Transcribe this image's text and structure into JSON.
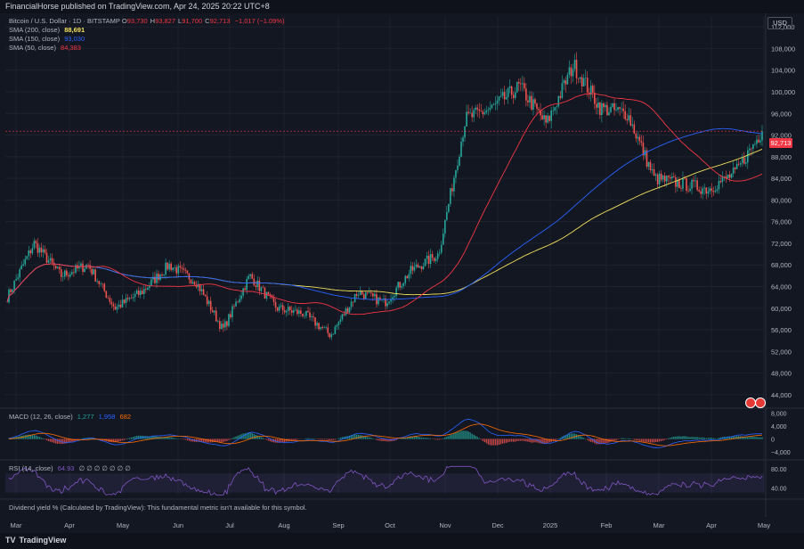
{
  "header": {
    "published": "FinancialHorse published on TradingView.com, Apr 24, 2025 20:22 UTC+8"
  },
  "legend": {
    "symbol": "Bitcoin / U.S. Dollar · 1D · BITSTAMP",
    "ohlc": [
      {
        "k": "O",
        "v": "93,730"
      },
      {
        "k": "H",
        "v": "93,827"
      },
      {
        "k": "L",
        "v": "91,700"
      },
      {
        "k": "C",
        "v": "92,713"
      }
    ],
    "change": "−1,017 (−1.09%)",
    "sma200_label": "SMA (200, close)",
    "sma200_value": "88,691",
    "sma150_label": "SMA (150, close)",
    "sma150_value": "93,030",
    "sma50_label": "SMA (50, close)",
    "sma50_value": "84,383"
  },
  "currency_button": "USD",
  "last_price_tag": "92,713",
  "macd": {
    "label": "MACD (12, 26, close)",
    "v1": "1,277",
    "v2": "1,958",
    "v3": "682"
  },
  "rsi": {
    "label": "RSI (14, close)",
    "value": "64.93",
    "extra": "∅ ∅ ∅ ∅ ∅ ∅ ∅"
  },
  "footer_note": "Dividend yield % (Calculated by TradingView): This fundamental metric isn't available for this symbol.",
  "brand": "TradingView",
  "colors": {
    "up": "#26a69a",
    "down": "#ef5350",
    "sma200": "#f2e15c",
    "sma150": "#2962ff",
    "sma50": "#f23645",
    "rsi": "#7e57c2",
    "macd": "#2962ff",
    "signal": "#ff6d00"
  },
  "chart_data": [
    {
      "type": "candlestick",
      "title": "Bitcoin / U.S. Dollar · 1D · BITSTAMP",
      "x_ticks": [
        "Mar",
        "Apr",
        "May",
        "Jun",
        "Jul",
        "Aug",
        "Sep",
        "Oct",
        "Nov",
        "Dec",
        "2025",
        "Feb",
        "Mar",
        "Apr",
        "May"
      ],
      "y_ticks": [
        44000,
        48000,
        52000,
        56000,
        60000,
        64000,
        68000,
        72000,
        76000,
        80000,
        84000,
        88000,
        92000,
        96000,
        100000,
        104000,
        108000,
        112000
      ],
      "ylim": [
        42000,
        114000
      ],
      "close_anchors_approx": [
        [
          "Mar",
          62000
        ],
        [
          "Mar",
          72000
        ],
        [
          "Apr",
          66000
        ],
        [
          "Apr",
          68000
        ],
        [
          "May",
          60000
        ],
        [
          "May",
          63000
        ],
        [
          "Jun",
          68000
        ],
        [
          "Jun",
          65000
        ],
        [
          "Jul",
          56000
        ],
        [
          "Jul",
          66000
        ],
        [
          "Aug",
          60000
        ],
        [
          "Aug",
          59000
        ],
        [
          "Sep",
          55000
        ],
        [
          "Sep",
          63000
        ],
        [
          "Oct",
          61000
        ],
        [
          "Oct",
          67000
        ],
        [
          "Nov",
          70000
        ],
        [
          "Nov",
          95000
        ],
        [
          "Dec",
          97000
        ],
        [
          "Dec",
          101000
        ],
        [
          "2025",
          94000
        ],
        [
          "2025",
          105000
        ],
        [
          "Feb",
          97000
        ],
        [
          "Feb",
          96000
        ],
        [
          "Mar",
          84000
        ],
        [
          "Mar",
          83000
        ],
        [
          "Apr",
          82000
        ],
        [
          "Apr",
          85000
        ],
        [
          "Apr",
          92713
        ]
      ],
      "series": [
        {
          "name": "SMA (200, close)",
          "value": 88691
        },
        {
          "name": "SMA (150, close)",
          "value": 93030
        },
        {
          "name": "SMA (50, close)",
          "value": 84383
        }
      ]
    },
    {
      "type": "bar",
      "title": "MACD (12, 26, close)",
      "y_ticks": [
        -4000,
        0,
        4000,
        8000
      ],
      "values_last": [
        1277,
        1958,
        682
      ]
    },
    {
      "type": "line",
      "title": "RSI (14, close)",
      "y_ticks": [
        40,
        80
      ],
      "value_last": 64.93
    }
  ]
}
